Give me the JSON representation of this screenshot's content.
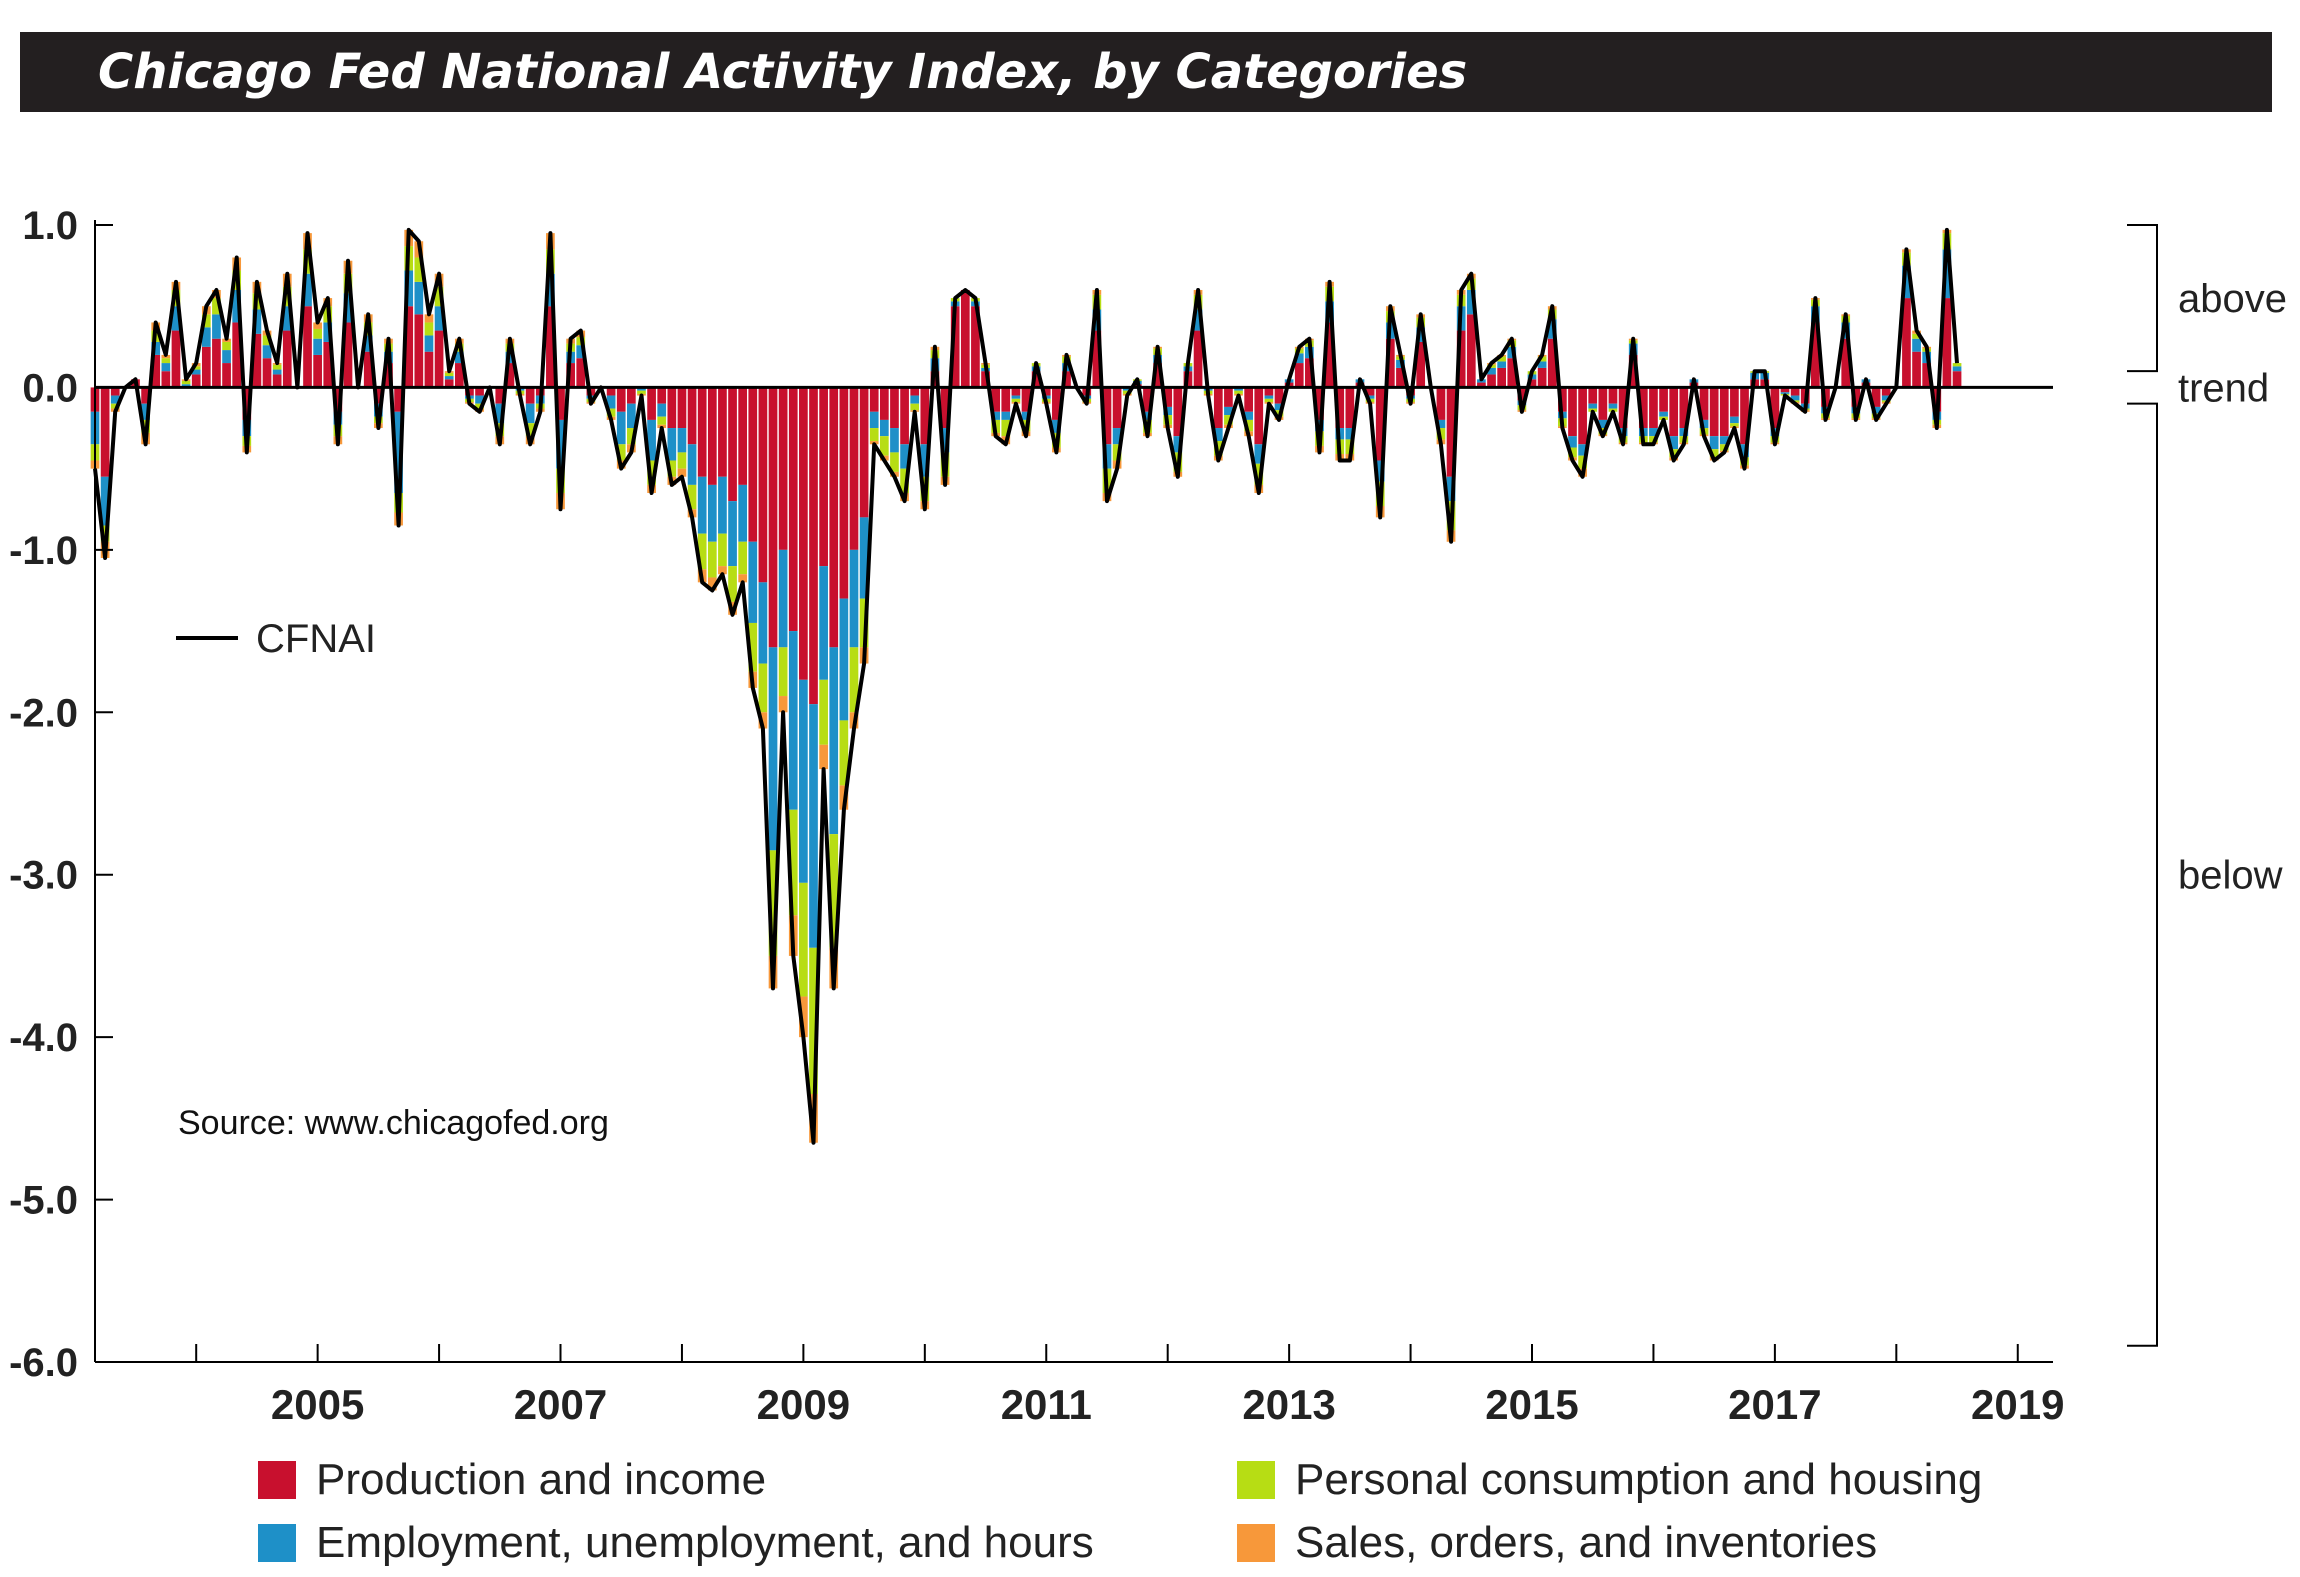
{
  "title": "Chicago Fed National Activity Index, by Categories",
  "source": "Source: www.chicagofed.org",
  "colors": {
    "production": "#c8102e",
    "employment": "#1e90c8",
    "consumption": "#b7dd14",
    "sales": "#f7983a",
    "line": "#000000"
  },
  "legend": {
    "production": "Production and income",
    "employment": "Employment, unemployment, and hours",
    "consumption": "Personal consumption and housing",
    "sales": "Sales, orders, and inventories",
    "line": "CFNAI"
  },
  "side_labels": {
    "above": "above",
    "trend": "trend",
    "below": "below"
  },
  "chart_data": {
    "type": "bar",
    "stacked": true,
    "x_start": "2003-03",
    "y_ticks": [
      "1.0",
      "0.0",
      "-1.0",
      "-2.0",
      "-3.0",
      "-4.0",
      "-5.0",
      "-6.0"
    ],
    "x_ticks": [
      "2005",
      "2007",
      "2009",
      "2011",
      "2013",
      "2015",
      "2017",
      "2019"
    ],
    "ylim": [
      -6.0,
      1.0
    ],
    "xlim": [
      "2003-03",
      "2019-03"
    ],
    "grid": false,
    "legend_position": "bottom",
    "series_order": [
      "production",
      "employment",
      "consumption",
      "sales"
    ],
    "cfnai": [
      -0.5,
      -1.05,
      -0.15,
      0.0,
      0.05,
      -0.35,
      0.4,
      0.2,
      0.65,
      0.05,
      0.15,
      0.5,
      0.6,
      0.3,
      0.8,
      -0.4,
      0.65,
      0.35,
      0.15,
      0.7,
      0.0,
      0.95,
      0.4,
      0.55,
      -0.35,
      0.78,
      0.0,
      0.45,
      -0.25,
      0.3,
      -0.85,
      0.97,
      0.9,
      0.45,
      0.7,
      0.1,
      0.3,
      -0.1,
      -0.15,
      0.0,
      -0.35,
      0.3,
      -0.05,
      -0.35,
      -0.15,
      0.95,
      -0.75,
      0.3,
      0.35,
      -0.1,
      0.0,
      -0.2,
      -0.5,
      -0.4,
      -0.05,
      -0.65,
      -0.25,
      -0.6,
      -0.55,
      -0.8,
      -1.2,
      -1.25,
      -1.15,
      -1.4,
      -1.2,
      -1.85,
      -2.1,
      -3.7,
      -2.0,
      -3.5,
      -4.0,
      -4.65,
      -2.35,
      -3.7,
      -2.6,
      -2.1,
      -1.7,
      -0.35,
      -0.45,
      -0.55,
      -0.7,
      -0.15,
      -0.75,
      0.25,
      -0.6,
      0.55,
      0.6,
      0.55,
      0.15,
      -0.3,
      -0.35,
      -0.1,
      -0.3,
      0.15,
      -0.1,
      -0.4,
      0.2,
      0.0,
      -0.1,
      0.6,
      -0.7,
      -0.5,
      -0.05,
      0.05,
      -0.3,
      0.25,
      -0.25,
      -0.55,
      0.15,
      0.6,
      -0.05,
      -0.45,
      -0.25,
      -0.05,
      -0.3,
      -0.65,
      -0.1,
      -0.2,
      0.05,
      0.25,
      0.3,
      -0.4,
      0.65,
      -0.45,
      -0.45,
      0.05,
      -0.1,
      -0.8,
      0.5,
      0.2,
      -0.1,
      0.45,
      0.0,
      -0.35,
      -0.95,
      0.6,
      0.7,
      0.05,
      0.15,
      0.2,
      0.3,
      -0.15,
      0.1,
      0.2,
      0.5,
      -0.25,
      -0.45,
      -0.55,
      -0.15,
      -0.3,
      -0.15,
      -0.35,
      0.3,
      -0.35,
      -0.35,
      -0.2,
      -0.45,
      -0.35,
      0.05,
      -0.3,
      -0.45,
      -0.4,
      -0.25,
      -0.5,
      0.1,
      0.1,
      -0.35,
      -0.05,
      -0.1,
      -0.15,
      0.55,
      -0.2,
      0.0,
      0.45,
      -0.2,
      0.05,
      -0.2,
      -0.1,
      0.0,
      0.85,
      0.35,
      0.25,
      -0.25,
      0.97,
      0.15
    ],
    "production": [
      -0.15,
      -0.55,
      -0.05,
      0.0,
      0.05,
      -0.1,
      0.2,
      0.1,
      0.35,
      0.0,
      0.08,
      0.25,
      0.3,
      0.15,
      0.4,
      -0.2,
      0.33,
      0.18,
      0.08,
      0.35,
      0.0,
      0.5,
      0.2,
      0.28,
      -0.15,
      0.4,
      0.0,
      0.22,
      -0.1,
      0.15,
      -0.15,
      0.5,
      0.45,
      0.22,
      0.35,
      0.05,
      0.15,
      -0.05,
      -0.05,
      0.0,
      -0.1,
      0.15,
      0.0,
      -0.1,
      -0.05,
      0.5,
      -0.2,
      0.15,
      0.18,
      -0.05,
      0.0,
      -0.05,
      -0.15,
      -0.1,
      0.0,
      -0.2,
      -0.1,
      -0.25,
      -0.25,
      -0.35,
      -0.55,
      -0.6,
      -0.55,
      -0.7,
      -0.6,
      -0.95,
      -1.2,
      -1.6,
      -1.0,
      -1.5,
      -1.8,
      -1.95,
      -1.1,
      -1.6,
      -1.3,
      -1.0,
      -0.8,
      -0.15,
      -0.2,
      -0.25,
      -0.35,
      -0.05,
      -0.35,
      0.1,
      -0.25,
      0.5,
      0.6,
      0.5,
      0.1,
      -0.15,
      -0.15,
      -0.05,
      -0.15,
      0.1,
      -0.05,
      -0.2,
      0.1,
      0.0,
      -0.05,
      0.35,
      -0.35,
      -0.25,
      0.0,
      0.02,
      -0.15,
      0.15,
      -0.12,
      -0.3,
      0.1,
      0.35,
      0.0,
      -0.25,
      -0.12,
      0.0,
      -0.15,
      -0.35,
      -0.05,
      -0.1,
      0.03,
      0.15,
      0.18,
      -0.2,
      0.4,
      -0.25,
      -0.25,
      0.03,
      -0.05,
      -0.45,
      0.3,
      0.12,
      -0.05,
      0.28,
      0.0,
      -0.2,
      -0.55,
      0.35,
      0.45,
      0.03,
      0.08,
      0.12,
      0.18,
      -0.08,
      0.05,
      0.12,
      0.3,
      -0.15,
      -0.3,
      -0.35,
      -0.1,
      -0.2,
      -0.1,
      -0.25,
      0.2,
      -0.25,
      -0.25,
      -0.15,
      -0.3,
      -0.25,
      0.03,
      -0.2,
      -0.3,
      -0.3,
      -0.18,
      -0.35,
      0.05,
      0.05,
      -0.25,
      -0.03,
      -0.05,
      -0.1,
      0.4,
      -0.12,
      0.0,
      0.3,
      -0.12,
      0.03,
      -0.12,
      -0.05,
      0.0,
      0.55,
      0.22,
      0.15,
      -0.15,
      0.55,
      0.1
    ],
    "employment": [
      -0.2,
      -0.3,
      -0.05,
      0.0,
      0.0,
      -0.1,
      0.08,
      0.05,
      0.15,
      0.02,
      0.03,
      0.12,
      0.15,
      0.08,
      0.2,
      -0.1,
      0.15,
      0.08,
      0.03,
      0.15,
      0.0,
      0.2,
      0.1,
      0.12,
      -0.08,
      0.18,
      0.0,
      0.1,
      -0.08,
      0.07,
      -0.5,
      0.22,
      0.2,
      0.1,
      0.15,
      0.02,
      0.07,
      -0.02,
      -0.05,
      0.0,
      -0.12,
      0.07,
      -0.02,
      -0.12,
      -0.05,
      0.2,
      -0.3,
      0.07,
      0.08,
      -0.02,
      0.0,
      -0.08,
      -0.2,
      -0.15,
      -0.02,
      -0.25,
      -0.08,
      -0.2,
      -0.15,
      -0.25,
      -0.35,
      -0.35,
      -0.35,
      -0.4,
      -0.35,
      -0.5,
      -0.5,
      -1.25,
      -0.6,
      -1.1,
      -1.25,
      -1.5,
      -0.7,
      -1.15,
      -0.75,
      -0.6,
      -0.5,
      -0.1,
      -0.1,
      -0.15,
      -0.15,
      -0.05,
      -0.2,
      0.08,
      -0.15,
      0.03,
      0.0,
      0.03,
      0.02,
      -0.05,
      -0.05,
      -0.02,
      -0.05,
      0.03,
      -0.02,
      -0.08,
      0.05,
      0.0,
      -0.02,
      0.13,
      -0.15,
      -0.1,
      -0.02,
      0.02,
      -0.05,
      0.05,
      -0.05,
      -0.1,
      0.03,
      0.13,
      -0.02,
      -0.08,
      -0.05,
      -0.02,
      -0.05,
      -0.12,
      -0.02,
      -0.04,
      0.02,
      0.06,
      0.07,
      -0.07,
      0.13,
      -0.07,
      -0.07,
      0.02,
      -0.02,
      -0.13,
      0.1,
      0.05,
      -0.02,
      0.09,
      0.0,
      -0.05,
      -0.15,
      0.15,
      0.15,
      0.02,
      0.04,
      0.04,
      0.07,
      -0.03,
      0.03,
      0.04,
      0.12,
      -0.04,
      -0.07,
      -0.07,
      -0.03,
      -0.05,
      -0.03,
      -0.05,
      0.07,
      -0.05,
      -0.05,
      -0.03,
      -0.08,
      -0.05,
      0.02,
      -0.05,
      -0.08,
      -0.05,
      -0.04,
      -0.08,
      0.04,
      0.04,
      -0.05,
      -0.01,
      -0.03,
      -0.03,
      0.1,
      -0.04,
      0.0,
      0.1,
      -0.04,
      0.02,
      -0.04,
      -0.03,
      0.0,
      0.2,
      0.08,
      0.07,
      -0.05,
      0.3,
      0.03
    ],
    "consumption": [
      -0.1,
      -0.1,
      -0.03,
      0.0,
      0.0,
      -0.08,
      0.07,
      0.03,
      0.1,
      0.02,
      0.02,
      0.08,
      0.1,
      0.05,
      0.12,
      -0.06,
      0.1,
      0.06,
      0.03,
      0.12,
      0.0,
      0.15,
      0.06,
      0.1,
      -0.07,
      0.12,
      0.0,
      0.08,
      -0.04,
      0.05,
      -0.12,
      0.15,
      0.15,
      0.08,
      0.12,
      0.02,
      0.05,
      -0.02,
      -0.03,
      0.0,
      -0.08,
      0.05,
      -0.02,
      -0.08,
      -0.03,
      0.15,
      -0.15,
      0.05,
      0.05,
      -0.02,
      0.0,
      -0.05,
      -0.1,
      -0.1,
      -0.02,
      -0.15,
      -0.05,
      -0.1,
      -0.1,
      -0.15,
      -0.22,
      -0.22,
      -0.2,
      -0.22,
      -0.2,
      -0.3,
      -0.3,
      -0.65,
      -0.3,
      -0.65,
      -0.7,
      -0.9,
      -0.4,
      -0.7,
      -0.4,
      -0.4,
      -0.3,
      -0.08,
      -0.12,
      -0.12,
      -0.15,
      -0.04,
      -0.15,
      0.05,
      -0.15,
      0.02,
      0.0,
      0.02,
      0.02,
      -0.08,
      -0.1,
      -0.02,
      -0.07,
      0.02,
      -0.02,
      -0.09,
      0.04,
      0.0,
      -0.02,
      0.09,
      -0.15,
      -0.1,
      -0.02,
      0.01,
      -0.08,
      0.04,
      -0.06,
      -0.12,
      0.02,
      0.09,
      -0.02,
      -0.09,
      -0.06,
      -0.02,
      -0.07,
      -0.13,
      -0.02,
      -0.04,
      0.0,
      0.03,
      0.04,
      -0.09,
      0.09,
      -0.09,
      -0.09,
      0.0,
      -0.02,
      -0.15,
      0.07,
      0.02,
      -0.02,
      0.06,
      0.0,
      -0.07,
      -0.18,
      0.07,
      0.07,
      0.0,
      0.02,
      0.03,
      0.04,
      -0.03,
      0.02,
      0.03,
      0.06,
      -0.05,
      -0.06,
      -0.08,
      -0.02,
      -0.04,
      -0.02,
      -0.04,
      0.02,
      -0.04,
      -0.04,
      -0.02,
      -0.05,
      -0.04,
      0.0,
      -0.04,
      -0.05,
      -0.04,
      -0.02,
      -0.05,
      0.01,
      0.01,
      -0.04,
      -0.01,
      -0.01,
      -0.01,
      0.04,
      -0.03,
      0.0,
      0.04,
      -0.03,
      0.0,
      -0.03,
      -0.01,
      0.0,
      0.08,
      0.03,
      0.02,
      -0.03,
      0.1,
      0.02
    ],
    "sales": [
      -0.05,
      -0.1,
      -0.02,
      0.0,
      0.0,
      -0.07,
      0.05,
      0.02,
      0.05,
      0.01,
      0.02,
      0.05,
      0.05,
      0.02,
      0.08,
      -0.04,
      0.07,
      0.03,
      0.01,
      0.08,
      0.0,
      0.1,
      0.04,
      0.05,
      -0.05,
      0.08,
      0.0,
      0.05,
      -0.03,
      0.03,
      -0.08,
      0.1,
      0.1,
      0.05,
      0.08,
      0.01,
      0.03,
      -0.01,
      -0.02,
      0.0,
      -0.05,
      0.03,
      -0.01,
      -0.05,
      -0.02,
      0.1,
      -0.1,
      0.03,
      0.04,
      -0.01,
      0.0,
      -0.02,
      -0.05,
      -0.05,
      -0.01,
      -0.05,
      -0.02,
      -0.05,
      -0.05,
      -0.05,
      -0.08,
      -0.08,
      -0.05,
      -0.08,
      -0.05,
      -0.1,
      -0.1,
      -0.2,
      -0.1,
      -0.25,
      -0.25,
      -0.3,
      -0.15,
      -0.25,
      -0.15,
      -0.1,
      -0.1,
      -0.02,
      -0.03,
      -0.03,
      -0.05,
      -0.01,
      -0.05,
      0.02,
      -0.05,
      0.0,
      0.0,
      0.0,
      0.01,
      -0.02,
      -0.05,
      -0.01,
      -0.03,
      0.0,
      -0.01,
      -0.03,
      0.01,
      0.0,
      -0.01,
      0.03,
      -0.05,
      -0.05,
      -0.01,
      0.0,
      -0.02,
      0.01,
      -0.02,
      -0.03,
      0.0,
      0.03,
      -0.01,
      -0.03,
      -0.02,
      -0.01,
      -0.03,
      -0.05,
      -0.01,
      -0.02,
      0.0,
      0.01,
      0.01,
      -0.04,
      0.03,
      -0.04,
      -0.04,
      0.0,
      -0.01,
      -0.07,
      0.03,
      0.01,
      -0.01,
      0.02,
      0.0,
      -0.03,
      -0.07,
      0.03,
      0.03,
      0.0,
      0.01,
      0.01,
      0.01,
      -0.01,
      0.0,
      0.01,
      0.02,
      -0.01,
      -0.02,
      -0.05,
      0.0,
      -0.01,
      0.0,
      -0.01,
      0.01,
      -0.01,
      -0.01,
      0.0,
      -0.02,
      -0.01,
      0.0,
      -0.01,
      -0.02,
      -0.01,
      -0.01,
      -0.02,
      0.0,
      0.0,
      -0.01,
      0.0,
      -0.01,
      -0.01,
      0.01,
      -0.01,
      0.0,
      0.01,
      -0.01,
      0.0,
      -0.01,
      -0.01,
      0.0,
      0.02,
      0.02,
      0.01,
      -0.02,
      0.02,
      0.0
    ]
  }
}
